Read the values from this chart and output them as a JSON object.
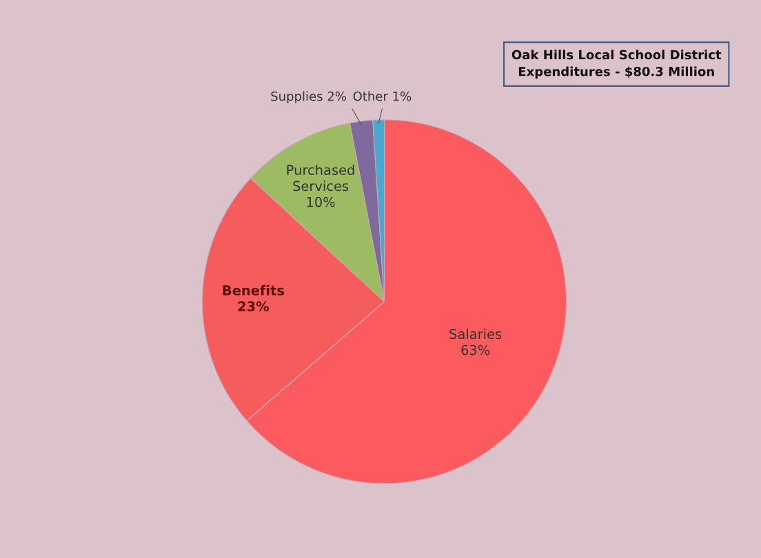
{
  "chart_data": {
    "type": "pie",
    "title": "Oak Hills Local School District\nExpenditures - $80.3 Million",
    "categories": [
      "Salaries",
      "Benefits",
      "Purchased Services",
      "Supplies",
      "Other"
    ],
    "values": [
      63,
      23,
      10,
      2,
      1
    ],
    "value_labels": [
      "63%",
      "23%",
      "10%",
      "2%",
      "1%"
    ],
    "colors": [
      "#fb5a5e",
      "#f45d5b",
      "#9dbb62",
      "#7e6a9c",
      "#47a9cf"
    ],
    "legend": false
  }
}
